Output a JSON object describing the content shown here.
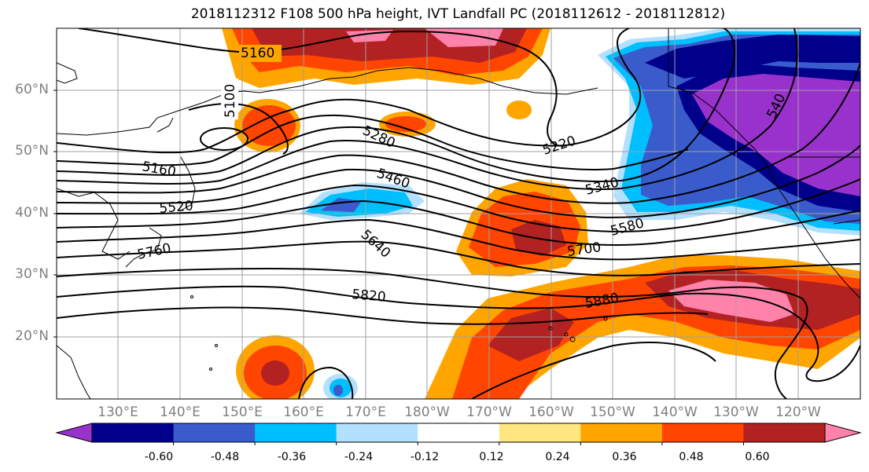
{
  "title": "2018112312 F108 500 hPa height, IVT Landfall PC (2018112612 - 2018112812)",
  "lat_labels": [
    "60°N",
    "50°N",
    "40°N",
    "30°N",
    "20°N"
  ],
  "lon_labels": [
    "130°E",
    "140°E",
    "150°E",
    "160°E",
    "170°E",
    "180°W",
    "170°W",
    "160°W",
    "150°W",
    "140°W",
    "130°W",
    "120°W"
  ],
  "colorbar": {
    "colors": [
      "#9932cc",
      "#00008b",
      "#3a5bcc",
      "#00bfff",
      "#b3e0ff",
      "#ffffff",
      "#ffe680",
      "#ffa500",
      "#ff4500",
      "#b22222",
      "#ff82ab"
    ],
    "tick_labels": [
      "-0.60",
      "-0.48",
      "-0.36",
      "-0.24",
      "-0.12",
      "0.12",
      "0.24",
      "0.36",
      "0.48",
      "0.60"
    ]
  },
  "contour_labels": [
    "5160",
    "5100",
    "5280",
    "5220",
    "5160",
    "5460",
    "5340",
    "5520",
    "5640",
    "5580",
    "5760",
    "5700",
    "5820",
    "5880",
    "540"
  ]
}
